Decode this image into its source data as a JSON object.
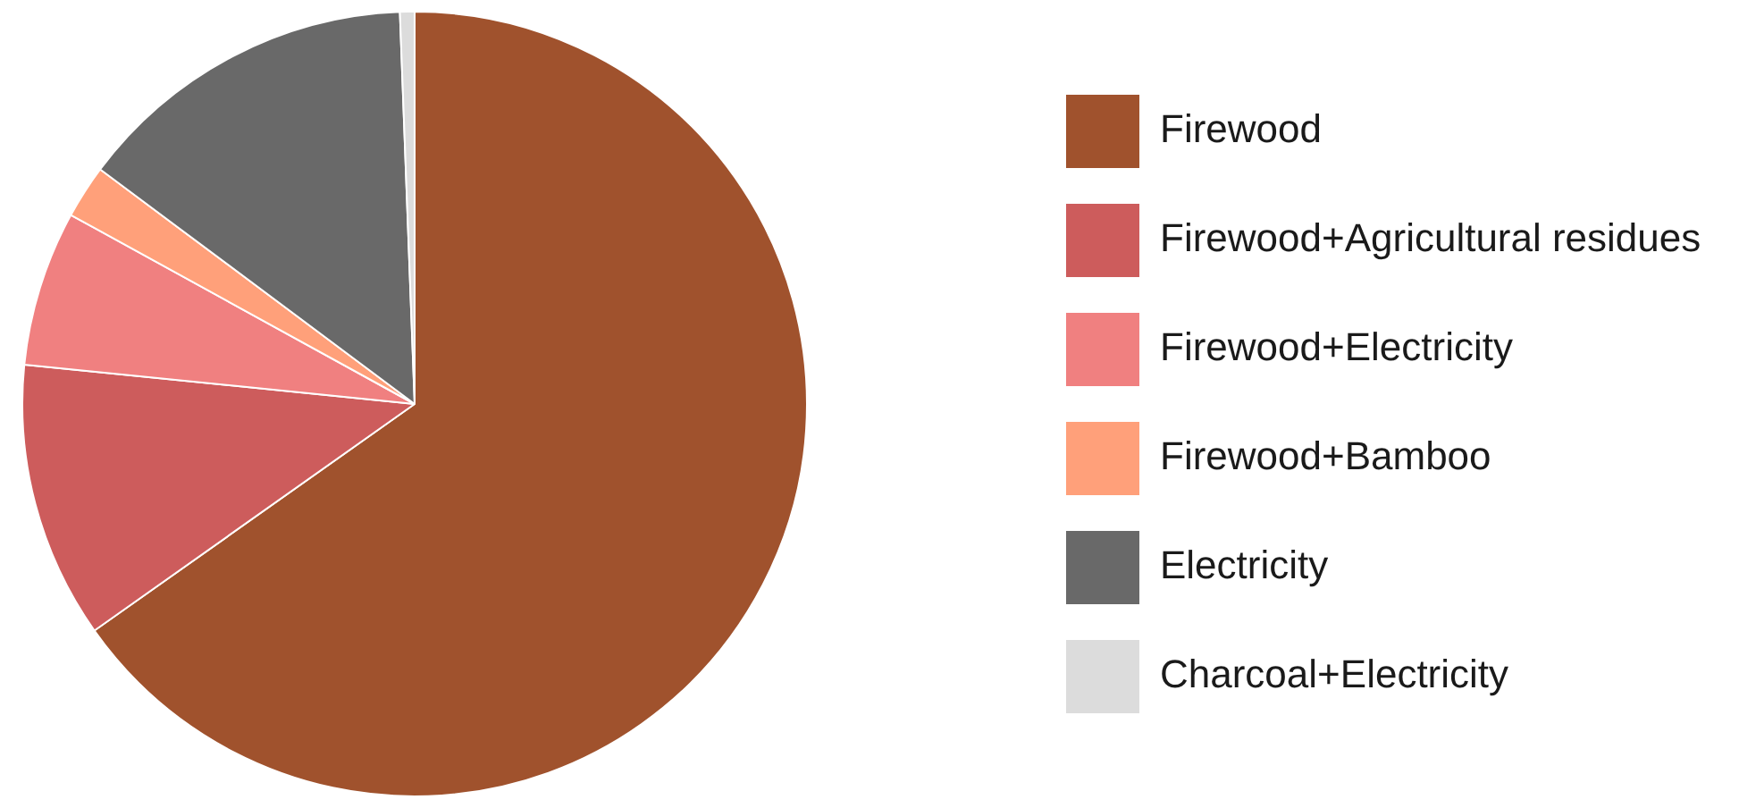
{
  "chart_data": {
    "type": "pie",
    "categories": [
      "Firewood",
      "Firewood+Agricultural residues",
      "Firewood+Electricity",
      "Firewood+Bamboo",
      "Electricity",
      "Charcoal+Electricity"
    ],
    "values": [
      65.2,
      11.4,
      6.4,
      2.2,
      14.2,
      0.6
    ],
    "colors": [
      "#a0522d",
      "#cd5c5c",
      "#f08080",
      "#ffa07a",
      "#696969",
      "#dcdcdc"
    ],
    "legend": "right"
  }
}
